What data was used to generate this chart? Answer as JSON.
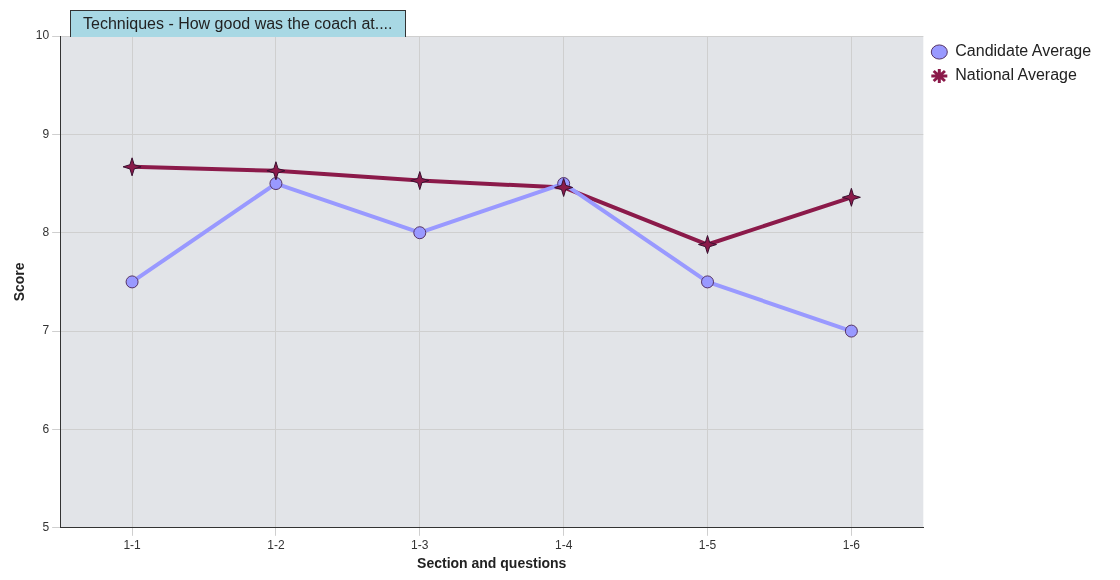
{
  "chart_data": {
    "type": "line",
    "title": "Techniques - How good was the coach at....",
    "xlabel": "Section and questions",
    "ylabel": "Score",
    "categories": [
      "1-1",
      "1-2",
      "1-3",
      "1-4",
      "1-5",
      "1-6"
    ],
    "series": [
      {
        "name": "Candidate Average",
        "color": "#9999ff",
        "marker": "circle",
        "values": [
          7.5,
          8.5,
          8.0,
          8.5,
          7.5,
          7.0
        ]
      },
      {
        "name": "National Average",
        "color": "#8b1a4a",
        "marker": "star",
        "values": [
          8.67,
          8.63,
          8.53,
          8.46,
          7.88,
          8.36
        ]
      }
    ],
    "ylim": [
      5,
      10
    ],
    "yticks": [
      5,
      6,
      7,
      8,
      9,
      10
    ],
    "grid": true,
    "legend": "right"
  }
}
